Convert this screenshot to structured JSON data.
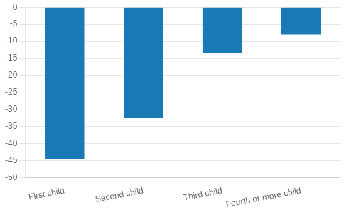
{
  "chart_data": {
    "type": "bar",
    "categories": [
      "First child",
      "Second child",
      "Third child",
      "Fourth or more child"
    ],
    "values": [
      -44.5,
      -32.5,
      -13.5,
      -8.0
    ],
    "color": "#1a7ab5",
    "ylim": [
      -50,
      0
    ],
    "yticks": [
      0,
      -5,
      -10,
      -15,
      -20,
      -25,
      -30,
      -35,
      -40,
      -45,
      -50
    ],
    "grid": true
  }
}
